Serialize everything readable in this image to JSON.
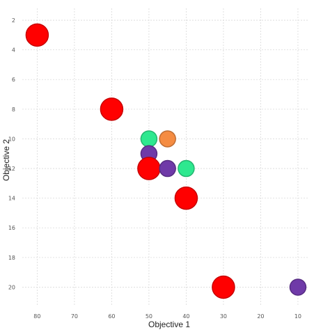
{
  "chart_data": {
    "type": "scatter",
    "title": "",
    "xlabel": "Objective 1",
    "ylabel": "Objective 2",
    "x_axis": {
      "reversed": true,
      "range": [
        84,
        7
      ],
      "ticks": [
        80,
        70,
        60,
        50,
        40,
        30,
        20,
        10
      ]
    },
    "y_axis": {
      "reversed": true,
      "range": [
        1.2,
        21.2
      ],
      "ticks": [
        2,
        4,
        6,
        8,
        10,
        12,
        14,
        16,
        18,
        20
      ]
    },
    "grid": true,
    "legend": "none",
    "points": [
      {
        "x": 80,
        "y": 3,
        "color": "#ff0000",
        "size": "large"
      },
      {
        "x": 60,
        "y": 8,
        "color": "#ff0000",
        "size": "large"
      },
      {
        "x": 50,
        "y": 10,
        "color": "#2ee88f",
        "size": "small"
      },
      {
        "x": 45,
        "y": 10,
        "color": "#f58c42",
        "size": "small"
      },
      {
        "x": 50,
        "y": 11,
        "color": "#6f3aa8",
        "size": "small"
      },
      {
        "x": 50,
        "y": 12,
        "color": "#ff0000",
        "size": "large"
      },
      {
        "x": 45,
        "y": 12,
        "color": "#6f3aa8",
        "size": "small"
      },
      {
        "x": 40,
        "y": 12,
        "color": "#2ee88f",
        "size": "small"
      },
      {
        "x": 40,
        "y": 14,
        "color": "#ff0000",
        "size": "large"
      },
      {
        "x": 30,
        "y": 20,
        "color": "#ff0000",
        "size": "large"
      },
      {
        "x": 10,
        "y": 20,
        "color": "#6f3aa8",
        "size": "small"
      }
    ]
  }
}
